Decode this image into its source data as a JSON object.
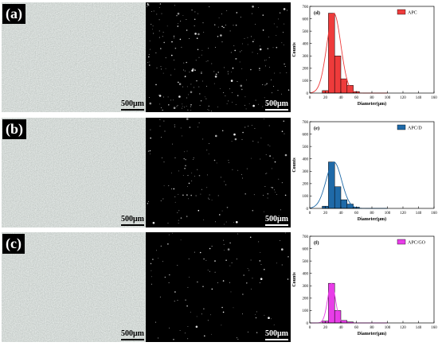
{
  "panels": [
    {
      "label": "(a)",
      "scale_left": "500μm",
      "scale_right": "500μm"
    },
    {
      "label": "(b)",
      "scale_left": "500μm",
      "scale_right": "500μm"
    },
    {
      "label": "(c)",
      "scale_left": "500μm",
      "scale_right": "500μm"
    }
  ],
  "chart_data": [
    {
      "type": "bar",
      "panel_label": "(d)",
      "xlabel": "Diameter(μm)",
      "ylabel": "Counts",
      "xlim": [
        0,
        160
      ],
      "ylim": [
        0,
        700
      ],
      "xticks": [
        0,
        20,
        40,
        60,
        80,
        100,
        120,
        140,
        160
      ],
      "yticks": [
        0,
        100,
        200,
        300,
        400,
        500,
        600,
        700
      ],
      "bin_width": 8,
      "series": [
        {
          "name": "APC",
          "color": "#ee3b3b",
          "bins": [
            [
              16,
              24,
              20
            ],
            [
              24,
              32,
              645
            ],
            [
              32,
              40,
              300
            ],
            [
              40,
              48,
              115
            ],
            [
              48,
              56,
              62
            ],
            [
              56,
              64,
              12
            ]
          ]
        }
      ],
      "fit_curve": {
        "type": "normal",
        "peak": 645,
        "mean": 31,
        "sd": 9
      },
      "legend": "top-right",
      "grid": false
    },
    {
      "type": "bar",
      "panel_label": "(e)",
      "xlabel": "Diameter(μm)",
      "ylabel": "Counts",
      "xlim": [
        0,
        160
      ],
      "ylim": [
        0,
        700
      ],
      "xticks": [
        0,
        20,
        40,
        60,
        80,
        100,
        120,
        140,
        160
      ],
      "yticks": [
        0,
        100,
        200,
        300,
        400,
        500,
        600,
        700
      ],
      "bin_width": 8,
      "series": [
        {
          "name": "APC/D",
          "color": "#1f6aa8",
          "bins": [
            [
              16,
              24,
              18
            ],
            [
              24,
              32,
              375
            ],
            [
              32,
              40,
              175
            ],
            [
              40,
              48,
              70
            ],
            [
              48,
              56,
              35
            ],
            [
              56,
              64,
              10
            ]
          ]
        }
      ],
      "fit_curve": {
        "type": "normal",
        "peak": 375,
        "mean": 31,
        "sd": 10
      },
      "legend": "top-right",
      "grid": false
    },
    {
      "type": "bar",
      "panel_label": "(f)",
      "xlabel": "Diameter(μm)",
      "ylabel": "Counts",
      "xlim": [
        0,
        160
      ],
      "ylim": [
        0,
        700
      ],
      "xticks": [
        0,
        20,
        40,
        60,
        80,
        100,
        120,
        140,
        160
      ],
      "yticks": [
        0,
        100,
        200,
        300,
        400,
        500,
        600,
        700
      ],
      "bin_width": 8,
      "series": [
        {
          "name": "APC/GO",
          "color": "#e83de8",
          "bins": [
            [
              16,
              24,
              15
            ],
            [
              24,
              32,
              320
            ],
            [
              32,
              40,
              100
            ],
            [
              40,
              48,
              20
            ],
            [
              48,
              56,
              8
            ]
          ]
        }
      ],
      "fit_curve": {
        "type": "normal",
        "peak": 320,
        "mean": 28,
        "sd": 5
      },
      "legend": "top-right",
      "grid": false
    }
  ]
}
